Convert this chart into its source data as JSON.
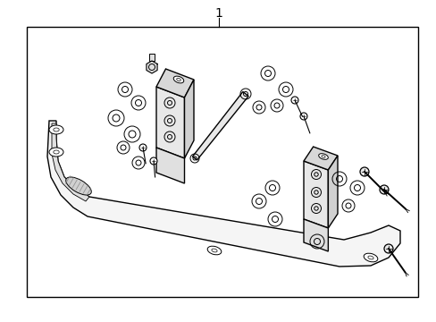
{
  "title": "1",
  "bg_color": "#ffffff",
  "border_color": "#000000",
  "line_color": "#000000",
  "figure_width": 4.89,
  "figure_height": 3.6,
  "dpi": 100
}
